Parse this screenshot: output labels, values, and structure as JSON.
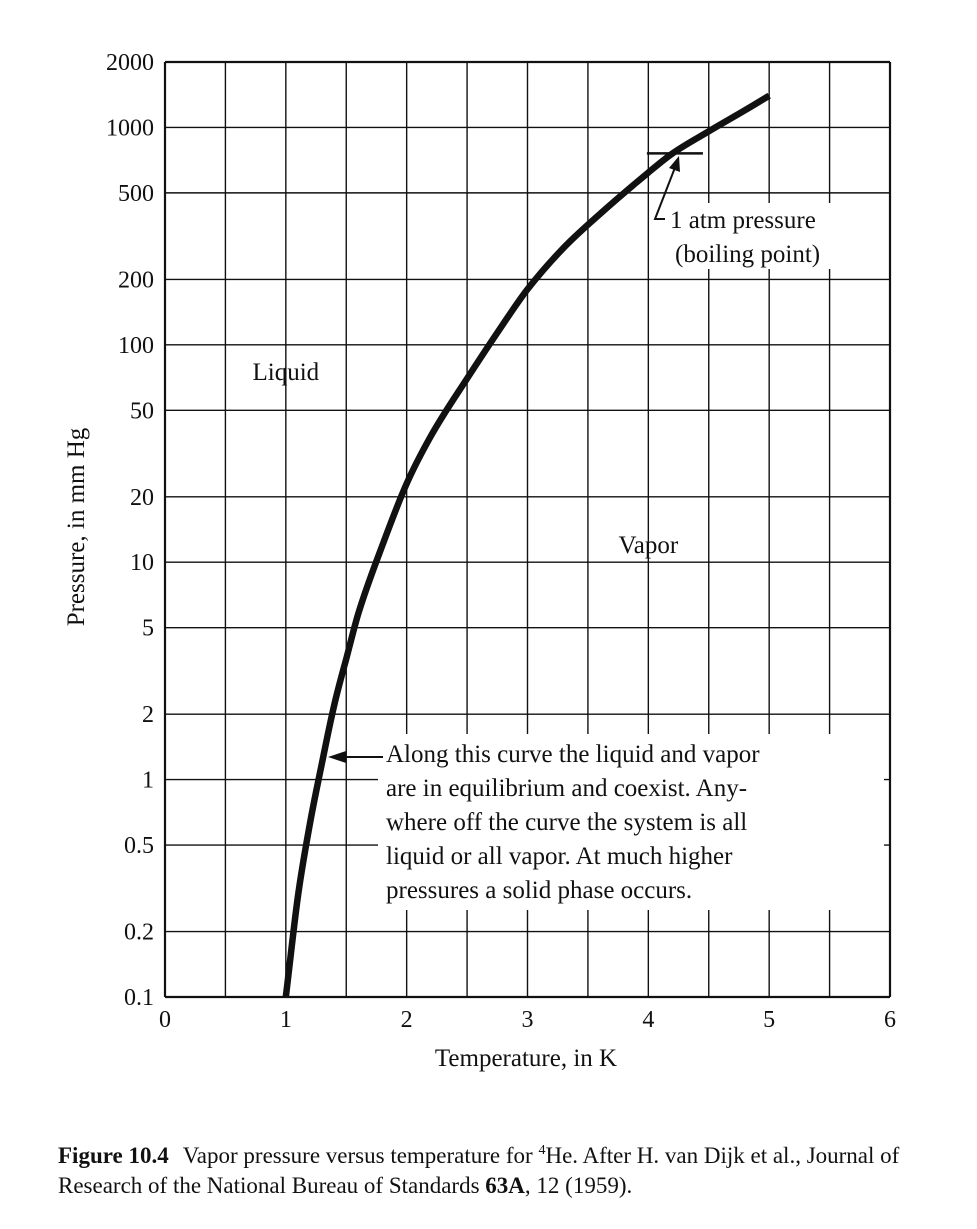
{
  "chart_data": {
    "type": "line",
    "xlabel": "Temperature, in K",
    "ylabel": "Pressure, in mm Hg",
    "xlim": [
      0,
      6
    ],
    "ylim": [
      0.1,
      2000
    ],
    "y_scale": "log",
    "grid": true,
    "x_ticks": [
      0,
      0.5,
      1,
      1.5,
      2,
      2.5,
      3,
      3.5,
      4,
      4.5,
      5,
      5.5,
      6
    ],
    "x_tick_labels": [
      "0",
      "1",
      "2",
      "3",
      "4",
      "5",
      "6"
    ],
    "x_tick_label_values": [
      0,
      1,
      2,
      3,
      4,
      5,
      6
    ],
    "y_ticks": [
      0.1,
      0.2,
      0.5,
      1,
      2,
      5,
      10,
      20,
      50,
      100,
      200,
      500,
      1000,
      2000
    ],
    "y_tick_labels": [
      "0.1",
      "0.2",
      "0.5",
      "1",
      "2",
      "5",
      "10",
      "20",
      "50",
      "100",
      "200",
      "500",
      "1000",
      "2000"
    ],
    "series": [
      {
        "x": [
          1.0,
          1.1,
          1.2,
          1.3,
          1.4,
          1.5,
          1.6,
          1.8,
          2.0,
          2.2,
          2.5,
          2.8,
          3.0,
          3.3,
          3.6,
          4.0,
          4.2,
          4.5,
          4.8,
          5.0
        ],
        "y": [
          0.1,
          0.29,
          0.63,
          1.2,
          2.2,
          3.6,
          5.8,
          12,
          23,
          38,
          70,
          125,
          180,
          280,
          400,
          620,
          760,
          960,
          1200,
          1400
        ]
      }
    ],
    "boiling_marker": {
      "x": 4.22,
      "y": 760
    },
    "region_labels": [
      {
        "text": "Liquid",
        "x": 1.0,
        "y": 75
      },
      {
        "text": "Vapor",
        "x": 4.0,
        "y": 12
      }
    ],
    "annotations": {
      "boiling": {
        "lines": [
          "1 atm pressure",
          "(boiling point)"
        ]
      },
      "curve": {
        "lines": [
          "Along this curve the liquid and vapor",
          "are in equilibrium and coexist. Any-",
          "where off the curve the system is all",
          "liquid or all vapor. At much higher",
          "pressures a solid phase occurs."
        ]
      }
    }
  },
  "caption": {
    "figure_number": "Figure 10.4",
    "text_a": "Vapor pressure versus temperature for ",
    "isotope_mass": "4",
    "text_b": "He. After H. van Dijk et al., Journal of Research of the National Bureau of Standards ",
    "volume": "63A",
    "text_c": ", 12 (1959)."
  }
}
